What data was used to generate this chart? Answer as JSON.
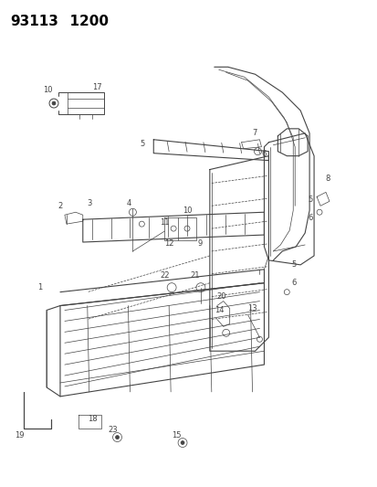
{
  "title1": "93113",
  "title2": "1200",
  "bg": "#ffffff",
  "lc": "#444444",
  "fig_w": 4.14,
  "fig_h": 5.33,
  "dpi": 100
}
